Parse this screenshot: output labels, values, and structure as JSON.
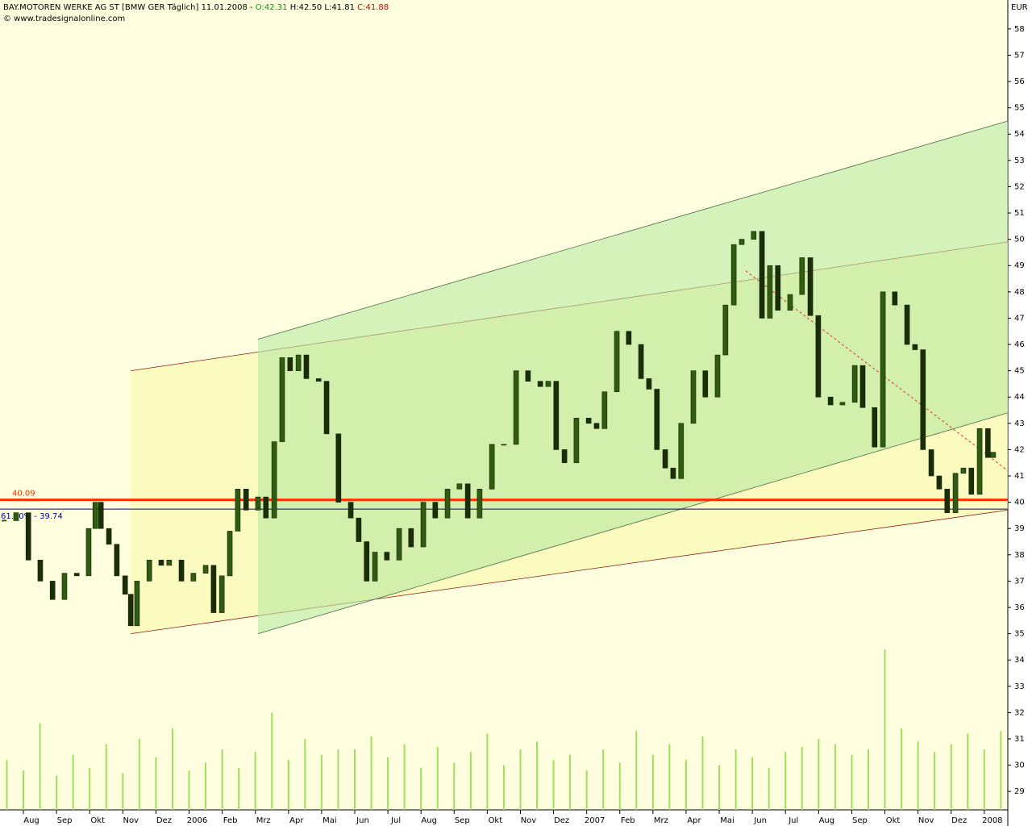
{
  "header": {
    "title": "BAY.MOTOREN WERKE AG ST [BMW GER  Täglich] 11.01.2008 - ",
    "open": "O:42.31",
    "highlow": "H:42.50 L:41.81",
    "close": "C:41.88",
    "source": "© www.tradesignalonline.com"
  },
  "chart_data": {
    "type": "candlestick",
    "unit": "EUR",
    "color": "#2f5c10",
    "x": [
      -0.58,
      -0.22,
      0.15,
      0.51,
      0.88,
      1.24,
      1.61,
      1.97,
      2.17,
      2.34,
      2.58,
      2.82,
      3.07,
      3.24,
      3.43,
      3.8,
      4.16,
      4.4,
      4.77,
      5.13,
      5.5,
      5.74,
      5.99,
      6.23,
      6.47,
      6.72,
      7.08,
      7.32,
      7.57,
      7.81,
      8.05,
      8.3,
      8.54,
      8.91,
      9.15,
      9.51,
      9.88,
      10.12,
      10.36,
      10.61,
      10.97,
      11.34,
      11.7,
      12.07,
      12.43,
      12.8,
      13.16,
      13.41,
      13.77,
      14.14,
      14.5,
      14.87,
      15.23,
      15.6,
      15.84,
      16.08,
      16.33,
      16.69,
      17.06,
      17.3,
      17.54,
      17.91,
      18.27,
      18.64,
      18.88,
      19.12,
      19.37,
      19.61,
      19.85,
      20.22,
      20.58,
      20.95,
      21.19,
      21.44,
      21.68,
      22.04,
      22.29,
      22.53,
      22.77,
      23.14,
      23.5,
      23.75,
      23.99,
      24.36,
      24.72,
      25.09,
      25.33,
      25.69,
      25.94,
      26.3,
      26.67,
      26.91,
      27.15,
      27.4,
      27.64,
      27.88,
      28.13,
      28.37,
      28.61,
      28.86,
      29.11,
      29.27
    ],
    "values": [
      39.3,
      39.6,
      37.8,
      37.0,
      36.3,
      37.3,
      37.2,
      39.0,
      40.0,
      39.0,
      38.4,
      37.2,
      36.5,
      35.3,
      37.0,
      37.8,
      37.6,
      37.8,
      37.0,
      37.3,
      37.6,
      35.8,
      37.2,
      38.9,
      40.5,
      39.7,
      40.2,
      39.4,
      42.3,
      45.5,
      45.0,
      45.6,
      44.7,
      44.6,
      42.6,
      40.0,
      39.4,
      38.5,
      37.0,
      38.1,
      37.8,
      39.0,
      38.3,
      40.0,
      39.4,
      40.5,
      40.7,
      39.4,
      40.5,
      42.2,
      42.2,
      45.0,
      44.6,
      44.4,
      44.6,
      42.0,
      41.5,
      43.2,
      43.0,
      42.8,
      44.2,
      46.5,
      46.0,
      44.7,
      44.3,
      42.0,
      41.3,
      40.9,
      43.0,
      45.0,
      44.0,
      45.6,
      47.5,
      49.8,
      50.0,
      50.3,
      47.0,
      49.0,
      47.3,
      47.9,
      49.3,
      47.1,
      44.0,
      43.7,
      43.8,
      45.2,
      43.6,
      42.1,
      48.0,
      47.5,
      46.0,
      45.8,
      42.0,
      41.0,
      40.5,
      39.6,
      41.1,
      41.3,
      40.3,
      42.8,
      41.7,
      41.9
    ],
    "volume": {
      "color": "#9ee05a",
      "x": [
        -0.5,
        0,
        0.5,
        1,
        1.5,
        2,
        2.5,
        3,
        3.5,
        4,
        4.5,
        5,
        5.5,
        6,
        6.5,
        7,
        7.5,
        8,
        8.5,
        9,
        9.5,
        10,
        10.5,
        11,
        11.5,
        12,
        12.5,
        13,
        13.5,
        14,
        14.5,
        15,
        15.5,
        16,
        16.5,
        17,
        17.5,
        18,
        18.5,
        19,
        19.5,
        20,
        20.5,
        21,
        21.5,
        22,
        22.5,
        23,
        23.5,
        24,
        24.5,
        25,
        25.5,
        26,
        26.5,
        27,
        27.5,
        28,
        28.5,
        29,
        29.5
      ],
      "values": [
        30.2,
        29.8,
        31.6,
        29.6,
        30.4,
        29.9,
        30.8,
        29.7,
        31.0,
        30.3,
        31.4,
        29.8,
        30.1,
        30.6,
        29.9,
        30.5,
        32.0,
        30.2,
        31.0,
        30.4,
        30.6,
        30.6,
        31.1,
        30.3,
        30.8,
        29.9,
        30.7,
        30.1,
        30.5,
        31.2,
        30.0,
        30.6,
        30.9,
        30.2,
        30.4,
        29.8,
        30.6,
        30.1,
        31.3,
        30.4,
        30.8,
        30.2,
        31.1,
        30.0,
        30.6,
        30.3,
        29.9,
        30.5,
        30.7,
        31.0,
        30.8,
        30.4,
        30.6,
        34.4,
        31.4,
        30.9,
        30.5,
        30.8,
        31.2,
        30.6,
        31.3
      ]
    },
    "channels": [
      {
        "color": "#f8f7a8",
        "upper": [
          [
            3.24,
            45.0
          ],
          [
            29.71,
            49.9
          ]
        ],
        "lower": [
          [
            3.24,
            35.0
          ],
          [
            29.71,
            39.7
          ]
        ],
        "line_color": "#8b1a1a"
      },
      {
        "color": "#b8eaa0",
        "upper": [
          [
            7.08,
            46.2
          ],
          [
            29.71,
            54.5
          ]
        ],
        "lower": [
          [
            7.08,
            35.0
          ],
          [
            29.71,
            43.4
          ]
        ],
        "line_color": "#4a6a4a"
      }
    ],
    "trendline": {
      "color": "#e03030",
      "points": [
        [
          21.8,
          48.8
        ],
        [
          29.71,
          41.2
        ]
      ]
    },
    "levels": [
      {
        "value": 40.09,
        "label": "40.09",
        "color": "#ff3000"
      },
      {
        "value": 39.74,
        "label": "61.80% - 39.74",
        "color": "#000080"
      }
    ],
    "xlim": [
      -0.706,
      29.71
    ],
    "ylim": [
      28.3,
      59.1
    ],
    "yticks": [
      29,
      30,
      31,
      32,
      33,
      34,
      35,
      36,
      37,
      38,
      39,
      40,
      41,
      42,
      43,
      44,
      45,
      46,
      47,
      48,
      49,
      50,
      51,
      52,
      53,
      54,
      55,
      56,
      57,
      58
    ],
    "xticks": [
      {
        "value": 0,
        "label": "Aug"
      },
      {
        "value": 1,
        "label": "Sep"
      },
      {
        "value": 2,
        "label": "Okt"
      },
      {
        "value": 3,
        "label": "Nov"
      },
      {
        "value": 4,
        "label": "Dez"
      },
      {
        "value": 5,
        "label": "2006"
      },
      {
        "value": 6,
        "label": "Feb"
      },
      {
        "value": 7,
        "label": "Mrz"
      },
      {
        "value": 8,
        "label": "Apr"
      },
      {
        "value": 9,
        "label": "Mai"
      },
      {
        "value": 10,
        "label": "Jun"
      },
      {
        "value": 11,
        "label": "Jul"
      },
      {
        "value": 12,
        "label": "Aug"
      },
      {
        "value": 13,
        "label": "Sep"
      },
      {
        "value": 14,
        "label": "Okt"
      },
      {
        "value": 15,
        "label": "Nov"
      },
      {
        "value": 16,
        "label": "Dez"
      },
      {
        "value": 17,
        "label": "2007"
      },
      {
        "value": 18,
        "label": "Feb"
      },
      {
        "value": 19,
        "label": "Mrz"
      },
      {
        "value": 20,
        "label": "Apr"
      },
      {
        "value": 21,
        "label": "Mai"
      },
      {
        "value": 22,
        "label": "Jun"
      },
      {
        "value": 23,
        "label": "Jul"
      },
      {
        "value": 24,
        "label": "Aug"
      },
      {
        "value": 25,
        "label": "Sep"
      },
      {
        "value": 26,
        "label": "Okt"
      },
      {
        "value": 27,
        "label": "Nov"
      },
      {
        "value": 28,
        "label": "Dez"
      },
      {
        "value": 29,
        "label": "2008"
      }
    ]
  }
}
